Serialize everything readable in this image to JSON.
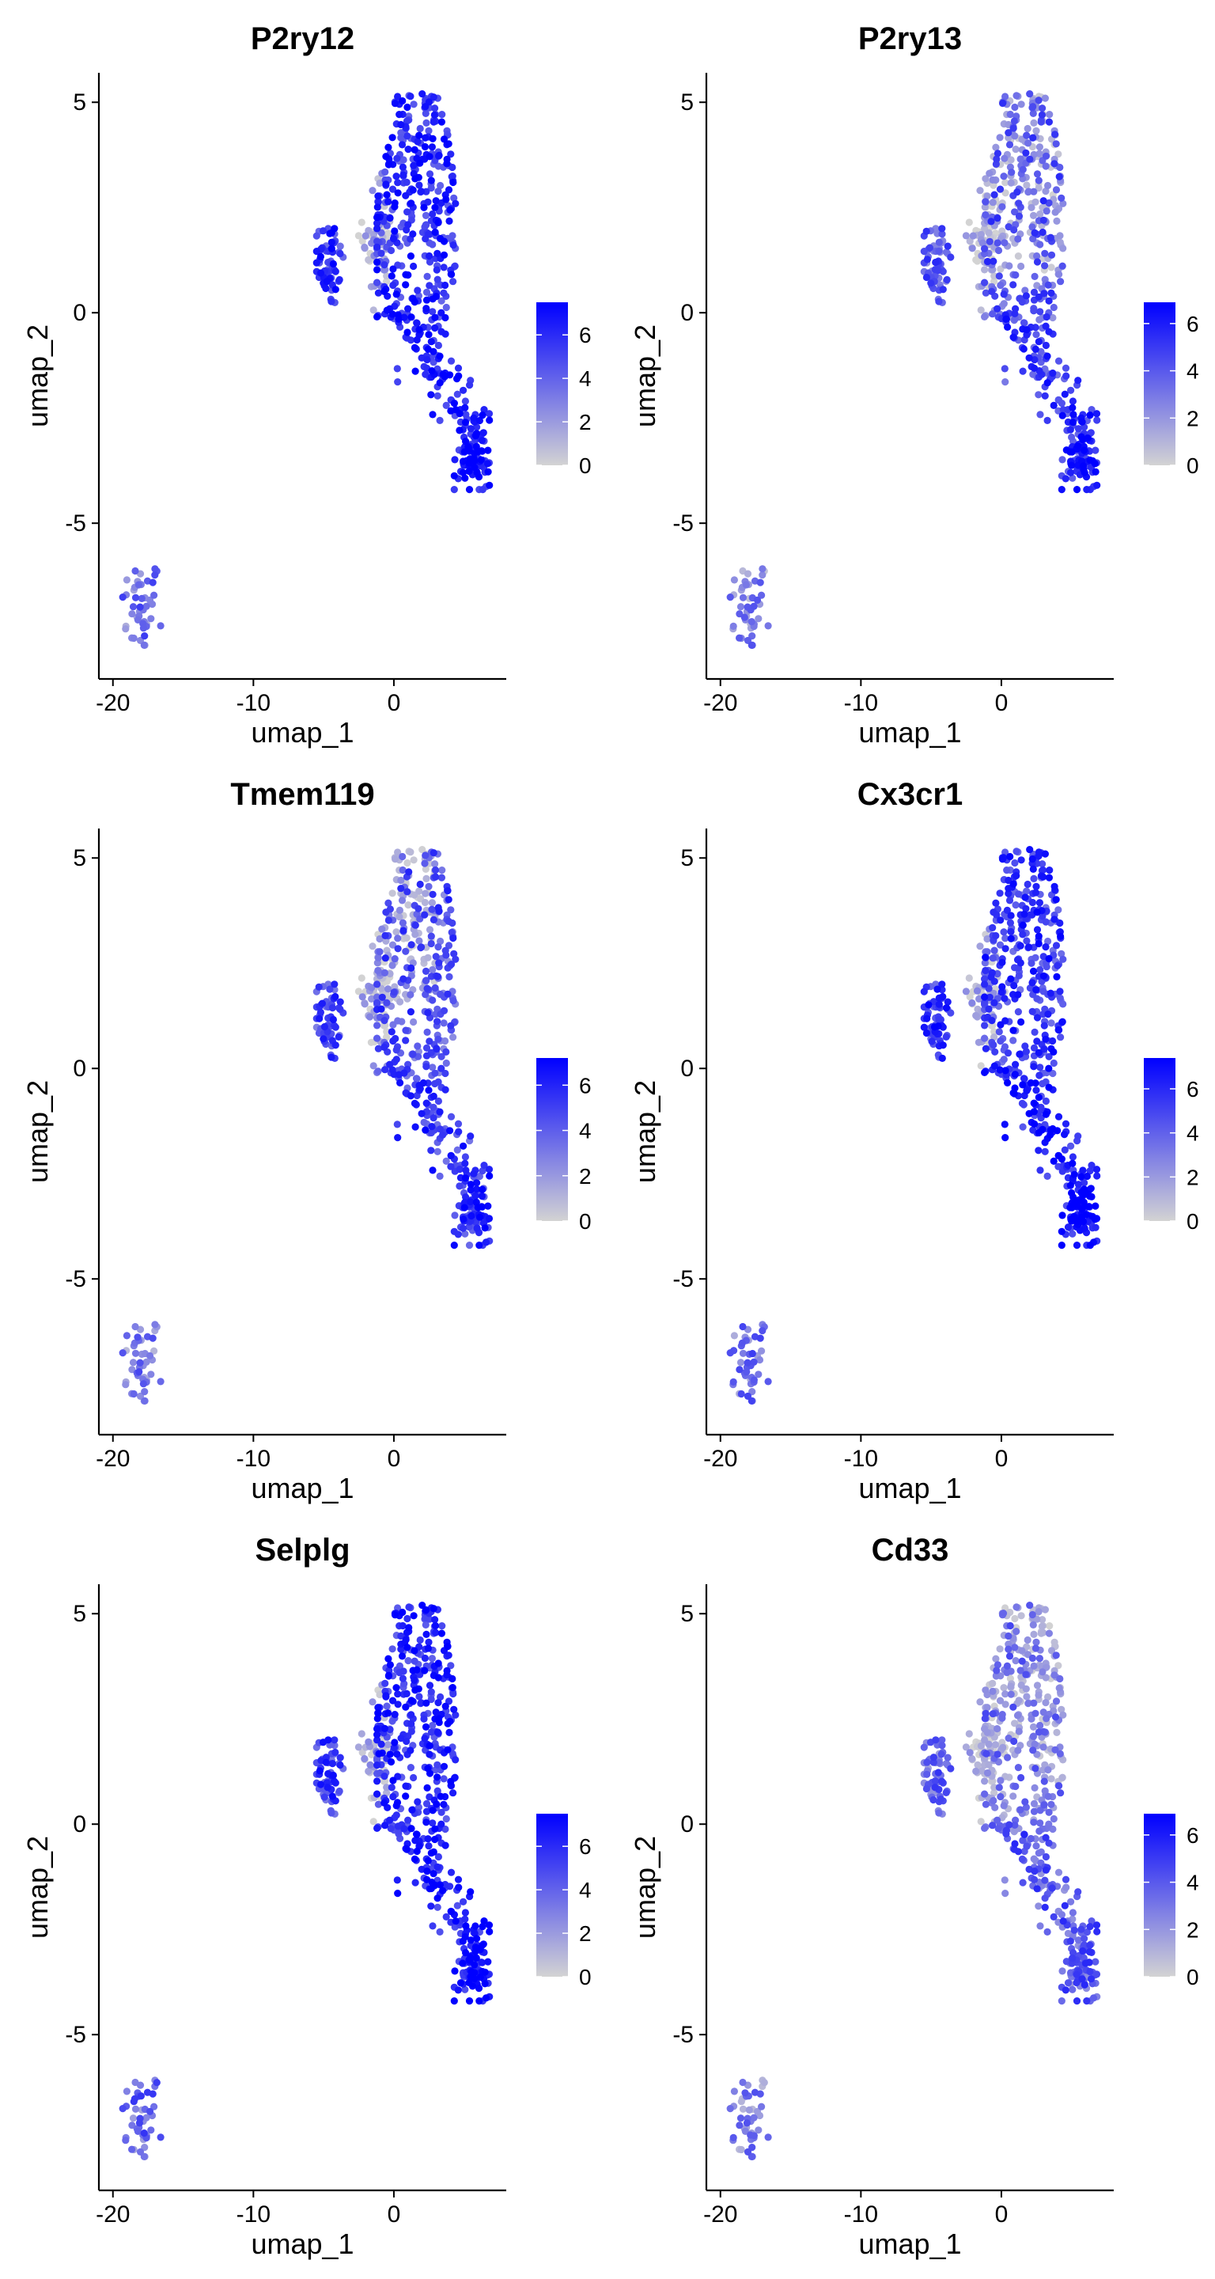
{
  "chart_data": [
    {
      "type": "scatter",
      "title": "P2ry12",
      "xlabel": "umap_1",
      "ylabel": "umap_2",
      "xticks": [
        -20,
        -10,
        0
      ],
      "yticks": [
        -5,
        0,
        5
      ],
      "xlim": [
        -21,
        8
      ],
      "ylim": [
        -8.7,
        5.7
      ],
      "colorbar": {
        "ticks": [
          0,
          2,
          4,
          6
        ],
        "max": 7.5
      },
      "profile": 0
    },
    {
      "type": "scatter",
      "title": "P2ry13",
      "xlabel": "umap_1",
      "ylabel": "umap_2",
      "xticks": [
        -20,
        -10,
        0
      ],
      "yticks": [
        -5,
        0,
        5
      ],
      "xlim": [
        -21,
        8
      ],
      "ylim": [
        -8.7,
        5.7
      ],
      "colorbar": {
        "ticks": [
          0,
          2,
          4,
          6
        ],
        "max": 6.9
      },
      "profile": 1
    },
    {
      "type": "scatter",
      "title": "Tmem119",
      "xlabel": "umap_1",
      "ylabel": "umap_2",
      "xticks": [
        -20,
        -10,
        0
      ],
      "yticks": [
        -5,
        0,
        5
      ],
      "xlim": [
        -21,
        8
      ],
      "ylim": [
        -8.7,
        5.7
      ],
      "colorbar": {
        "ticks": [
          0,
          2,
          4,
          6
        ],
        "max": 7.2
      },
      "profile": 2
    },
    {
      "type": "scatter",
      "title": "Cx3cr1",
      "xlabel": "umap_1",
      "ylabel": "umap_2",
      "xticks": [
        -20,
        -10,
        0
      ],
      "yticks": [
        -5,
        0,
        5
      ],
      "xlim": [
        -21,
        8
      ],
      "ylim": [
        -8.7,
        5.7
      ],
      "colorbar": {
        "ticks": [
          0,
          2,
          4,
          6
        ],
        "max": 7.4
      },
      "profile": 3
    },
    {
      "type": "scatter",
      "title": "Selplg",
      "xlabel": "umap_1",
      "ylabel": "umap_2",
      "xticks": [
        -20,
        -10,
        0
      ],
      "yticks": [
        -5,
        0,
        5
      ],
      "xlim": [
        -21,
        8
      ],
      "ylim": [
        -8.7,
        5.7
      ],
      "colorbar": {
        "ticks": [
          0,
          2,
          4,
          6
        ],
        "max": 7.5
      },
      "profile": 4
    },
    {
      "type": "scatter",
      "title": "Cd33",
      "xlabel": "umap_1",
      "ylabel": "umap_2",
      "xticks": [
        -20,
        -10,
        0
      ],
      "yticks": [
        -5,
        0,
        5
      ],
      "xlim": [
        -21,
        8
      ],
      "ylim": [
        -8.7,
        5.7
      ],
      "colorbar": {
        "ticks": [
          0,
          2,
          4,
          6
        ],
        "max": 6.9
      },
      "profile": 5
    }
  ],
  "colors": {
    "low": "#d3d3d3",
    "high": "#0000ff"
  }
}
